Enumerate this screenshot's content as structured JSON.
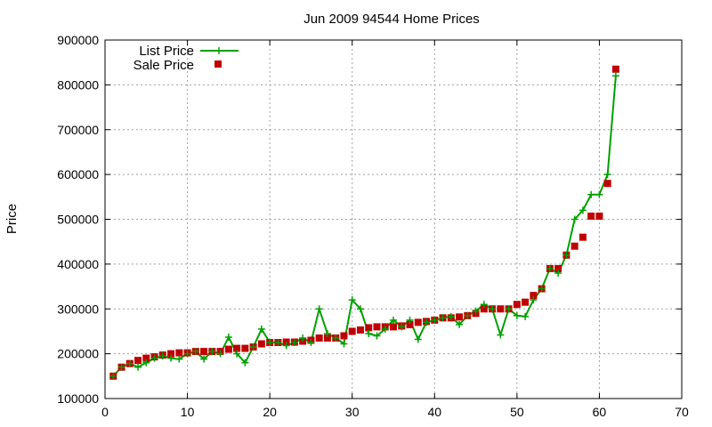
{
  "chart_data": {
    "type": "line",
    "title": "Jun 2009 94544 Home Prices",
    "xlabel": "",
    "ylabel": "Price",
    "xlim": [
      0,
      70
    ],
    "ylim": [
      100000,
      900000
    ],
    "xticks": [
      0,
      10,
      20,
      30,
      40,
      50,
      60,
      70
    ],
    "yticks": [
      100000,
      200000,
      300000,
      400000,
      500000,
      600000,
      700000,
      800000,
      900000
    ],
    "grid": true,
    "legend_position": "top-left",
    "x": [
      1,
      2,
      3,
      4,
      5,
      6,
      7,
      8,
      9,
      10,
      11,
      12,
      13,
      14,
      15,
      16,
      17,
      18,
      19,
      20,
      21,
      22,
      23,
      24,
      25,
      26,
      27,
      28,
      29,
      30,
      31,
      32,
      33,
      34,
      35,
      36,
      37,
      38,
      39,
      40,
      41,
      42,
      43,
      44,
      45,
      46,
      47,
      48,
      49,
      50,
      51,
      52,
      53,
      54,
      55,
      56,
      57,
      58,
      59,
      60,
      61,
      62
    ],
    "series": [
      {
        "name": "List Price",
        "style": "linespoints",
        "marker": "plus",
        "color": "#00a000",
        "values": [
          150000,
          170000,
          178000,
          170000,
          180000,
          190000,
          195000,
          190000,
          188000,
          200000,
          205000,
          188000,
          205000,
          200000,
          237000,
          200000,
          180000,
          215000,
          255000,
          225000,
          225000,
          218000,
          225000,
          235000,
          225000,
          300000,
          245000,
          235000,
          222000,
          320000,
          300000,
          245000,
          240000,
          255000,
          275000,
          260000,
          275000,
          232000,
          270000,
          275000,
          280000,
          283000,
          265000,
          285000,
          295000,
          310000,
          300000,
          242000,
          300000,
          285000,
          283000,
          320000,
          345000,
          390000,
          380000,
          420000,
          500000,
          520000,
          555000,
          555000,
          600000,
          820000
        ]
      },
      {
        "name": "Sale Price",
        "style": "points",
        "marker": "square",
        "color": "#c00000",
        "values": [
          150000,
          170000,
          178000,
          185000,
          190000,
          193000,
          197000,
          200000,
          202000,
          202000,
          205000,
          205000,
          205000,
          205000,
          210000,
          212000,
          212000,
          215000,
          222000,
          225000,
          225000,
          226000,
          226000,
          228000,
          230000,
          235000,
          235000,
          235000,
          240000,
          250000,
          253000,
          258000,
          260000,
          260000,
          260000,
          262000,
          265000,
          270000,
          272000,
          275000,
          280000,
          280000,
          282000,
          285000,
          290000,
          300000,
          300000,
          300000,
          300000,
          310000,
          315000,
          330000,
          345000,
          390000,
          390000,
          420000,
          440000,
          460000,
          507000,
          507000,
          580000,
          835000
        ]
      }
    ]
  }
}
